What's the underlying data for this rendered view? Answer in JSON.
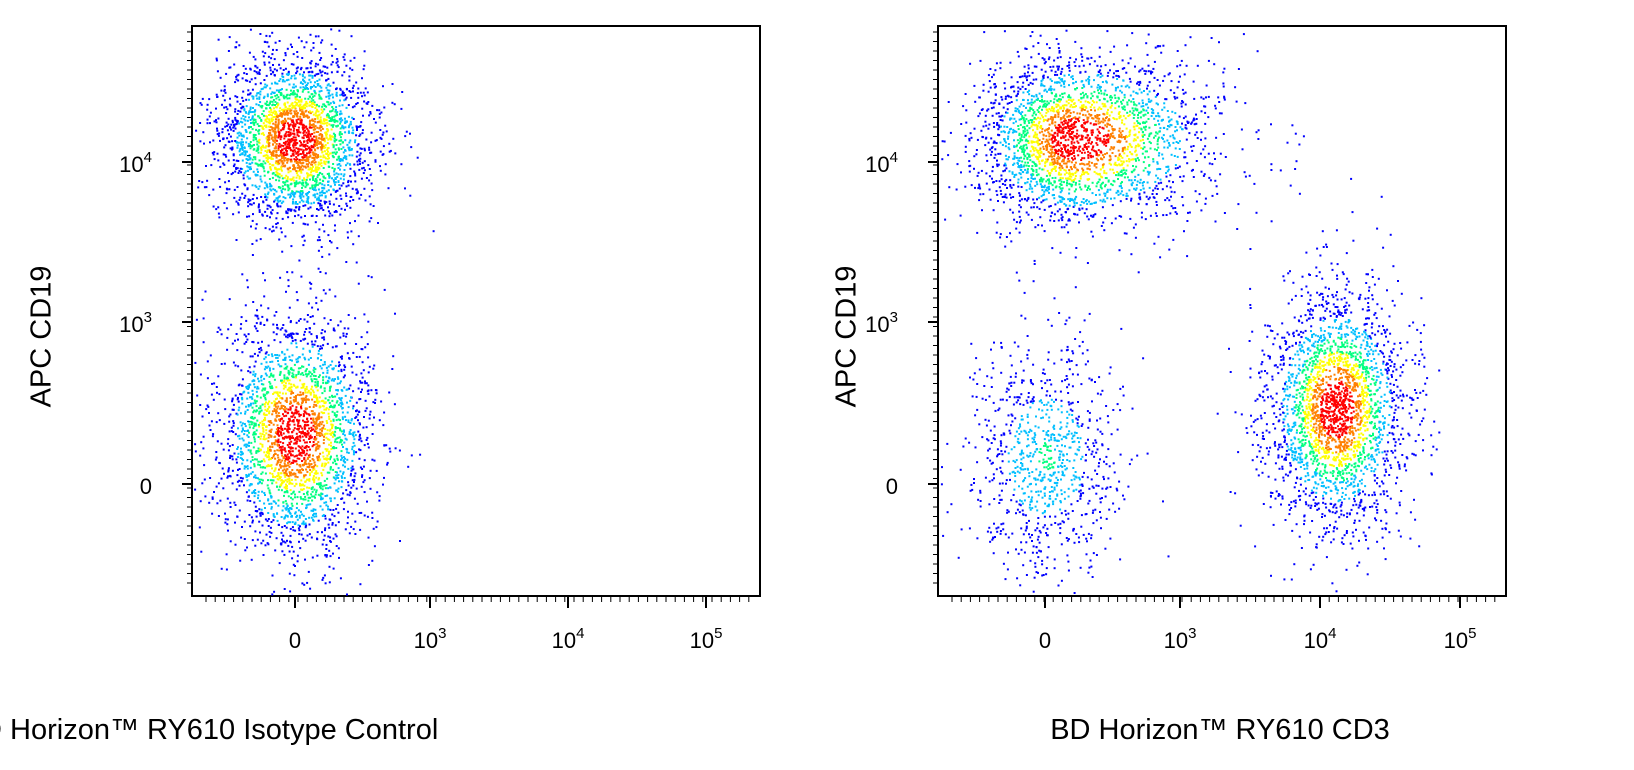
{
  "chart_data": [
    {
      "type": "scatter",
      "subtype": "flow-cytometry-density-dot-plot",
      "xlabel": "BD Horizon™ RY610 Isotype Control",
      "ylabel": "APC  CD19",
      "x_scale": "biexponential",
      "y_scale": "biexponential",
      "x_ticks": [
        {
          "value": 0,
          "base": "0",
          "exp": ""
        },
        {
          "value": 1000,
          "base": "10",
          "exp": "3"
        },
        {
          "value": 10000,
          "base": "10",
          "exp": "4"
        },
        {
          "value": 100000,
          "base": "10",
          "exp": "5"
        }
      ],
      "y_ticks": [
        {
          "value": 0,
          "base": "0",
          "exp": ""
        },
        {
          "value": 1000,
          "base": "10",
          "exp": "3"
        },
        {
          "value": 10000,
          "base": "10",
          "exp": "4"
        }
      ],
      "populations": [
        {
          "name": "",
          "center": [
            0,
            14000
          ],
          "count": 2600
        },
        {
          "name": "",
          "center": [
            0,
            120
          ],
          "count": 2600
        }
      ],
      "colors": [
        "#0000ff",
        "#00bfff",
        "#00ff7f",
        "#ffff00",
        "#ff8000",
        "#ff0000"
      ],
      "grid": false
    },
    {
      "type": "scatter",
      "subtype": "flow-cytometry-density-dot-plot",
      "xlabel": "BD Horizon™ RY610 CD3",
      "ylabel": "APC  CD19",
      "x_scale": "biexponential",
      "y_scale": "biexponential",
      "x_ticks": [
        {
          "value": 0,
          "base": "0",
          "exp": ""
        },
        {
          "value": 1000,
          "base": "10",
          "exp": "3"
        },
        {
          "value": 10000,
          "base": "10",
          "exp": "4"
        },
        {
          "value": 100000,
          "base": "10",
          "exp": "5"
        }
      ],
      "y_ticks": [
        {
          "value": 0,
          "base": "0",
          "exp": ""
        },
        {
          "value": 1000,
          "base": "10",
          "exp": "3"
        },
        {
          "value": 10000,
          "base": "10",
          "exp": "4"
        }
      ],
      "populations": [
        {
          "name": "",
          "center": [
            60,
            14000
          ],
          "count": 2600
        },
        {
          "name": "",
          "center": [
            0,
            40
          ],
          "count": 900
        },
        {
          "name": "",
          "center": [
            13000,
            250
          ],
          "count": 2600
        }
      ],
      "colors": [
        "#0000ff",
        "#00bfff",
        "#00ff7f",
        "#ffff00",
        "#ff8000",
        "#ff0000"
      ],
      "grid": false
    }
  ]
}
